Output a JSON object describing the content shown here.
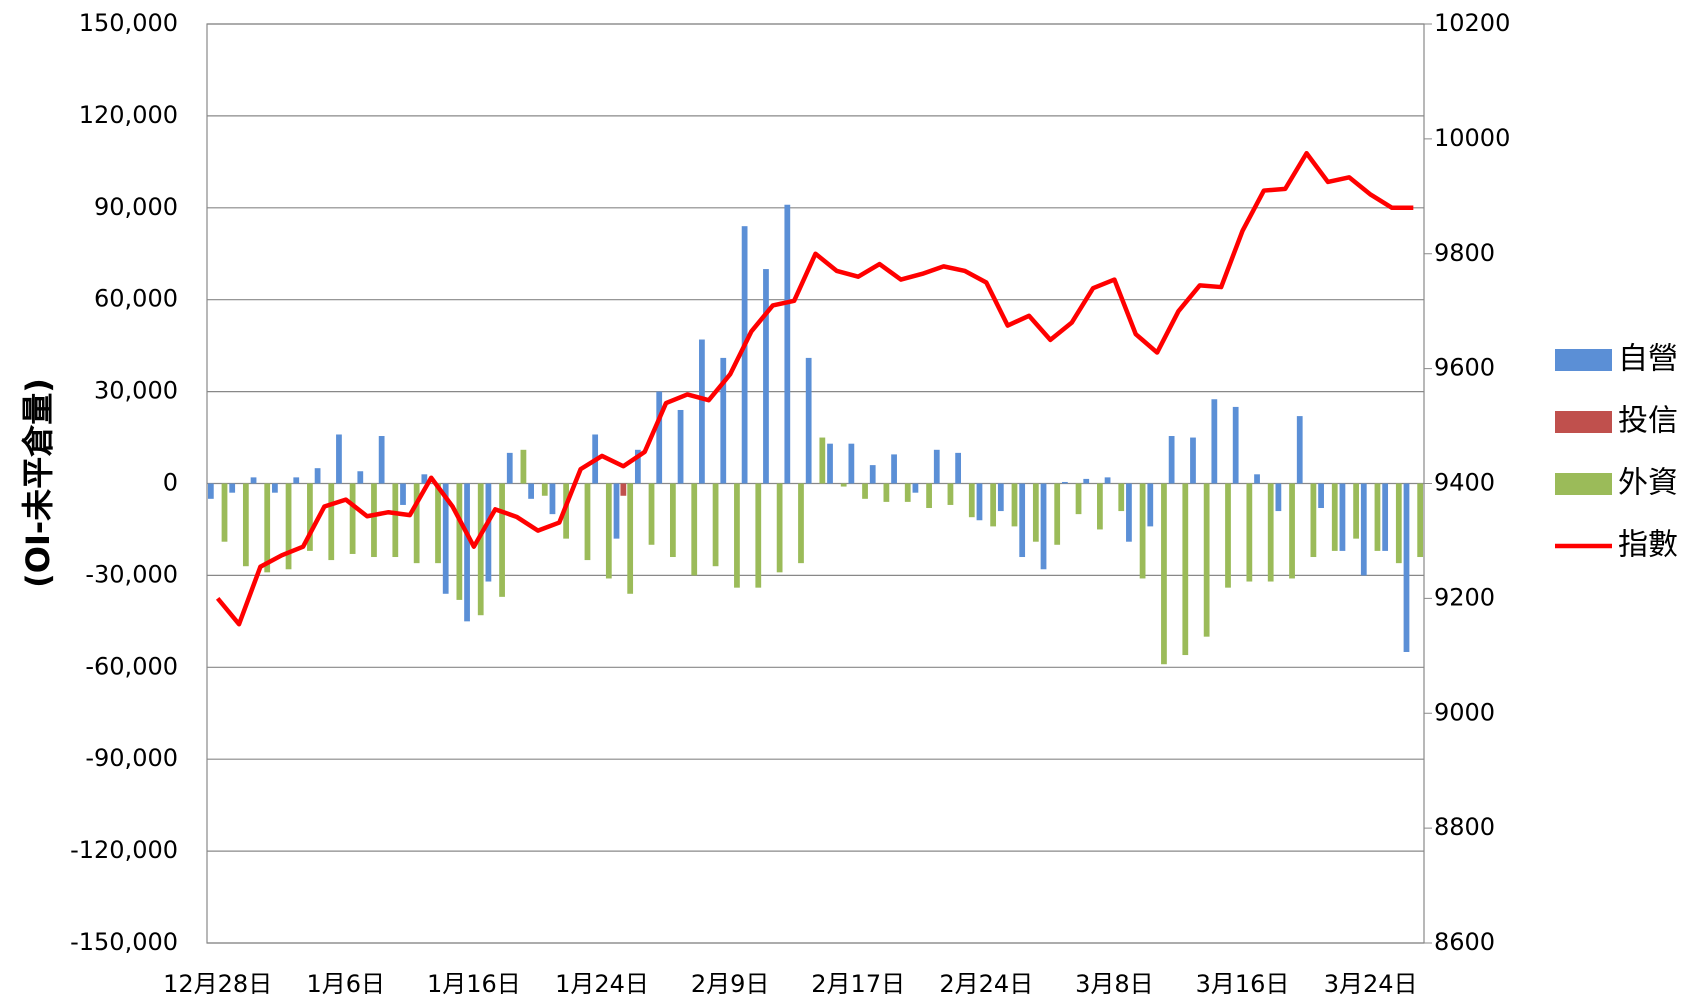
{
  "chart_data": {
    "type": "bar-line",
    "y_axis_label": "(OI-未平倉量)",
    "categories": [
      "12月28日",
      null,
      null,
      null,
      null,
      null,
      "1月6日",
      null,
      null,
      null,
      null,
      null,
      "1月16日",
      null,
      null,
      null,
      null,
      null,
      "1月24日",
      null,
      null,
      null,
      null,
      null,
      "2月9日",
      null,
      null,
      null,
      null,
      null,
      "2月17日",
      null,
      null,
      null,
      null,
      null,
      "2月24日",
      null,
      null,
      null,
      null,
      null,
      "3月8日",
      null,
      null,
      null,
      null,
      null,
      "3月16日",
      null,
      null,
      null,
      null,
      null,
      "3月24日",
      null,
      null
    ],
    "series": [
      {
        "name": "自營",
        "type": "bar",
        "color": "#5b8fd6",
        "values": [
          -5000,
          -3000,
          2000,
          -3000,
          2000,
          5000,
          16000,
          4000,
          15500,
          -7000,
          3000,
          -36000,
          -45000,
          -32000,
          10000,
          -5000,
          -10000,
          0,
          16000,
          -18000,
          11000,
          30000,
          24000,
          47000,
          41000,
          84000,
          70000,
          91000,
          41000,
          13000,
          13000,
          6000,
          9500,
          -3000,
          11000,
          10000,
          -12000,
          -9000,
          -24000,
          -28000,
          500,
          1500,
          2000,
          -19000,
          -14000,
          15500,
          15000,
          27500,
          25000,
          3000,
          -9000,
          22000,
          -8000,
          -22000,
          -30000,
          -22000,
          -55000
        ]
      },
      {
        "name": "投信",
        "type": "bar",
        "color": "#c0504d",
        "values": [
          0,
          0,
          0,
          0,
          0,
          0,
          0,
          0,
          0,
          0,
          0,
          0,
          0,
          0,
          0,
          0,
          0,
          0,
          0,
          -4000,
          0,
          0,
          0,
          0,
          0,
          0,
          0,
          0,
          0,
          0,
          0,
          0,
          0,
          0,
          0,
          0,
          0,
          0,
          0,
          0,
          0,
          0,
          0,
          0,
          0,
          0,
          0,
          0,
          0,
          0,
          0,
          0,
          0,
          0,
          0,
          0,
          0
        ]
      },
      {
        "name": "外資",
        "type": "bar",
        "color": "#9bbb59",
        "values": [
          -19000,
          -27000,
          -29000,
          -28000,
          -22000,
          -25000,
          -23000,
          -24000,
          -24000,
          -26000,
          -26000,
          -38000,
          -43000,
          -37000,
          11000,
          -4000,
          -18000,
          -25000,
          -31000,
          -36000,
          -20000,
          -24000,
          -30000,
          -27000,
          -34000,
          -34000,
          -29000,
          -26000,
          15000,
          -1000,
          -5000,
          -6000,
          -6000,
          -8000,
          -7000,
          -11000,
          -14000,
          -14000,
          -19000,
          -20000,
          -10000,
          -15000,
          -9000,
          -31000,
          -59000,
          -56000,
          -50000,
          -34000,
          -32000,
          -32000,
          -31000,
          -24000,
          -22000,
          -18000,
          -22000,
          -26000,
          -24000
        ]
      },
      {
        "name": "指數",
        "type": "line",
        "axis": "y2",
        "color": "#ff0000",
        "values": [
          9200,
          9155,
          9255,
          9275,
          9290,
          9360,
          9372,
          9343,
          9350,
          9345,
          9410,
          9360,
          9290,
          9355,
          9342,
          9318,
          9332,
          9425,
          9448,
          9430,
          9455,
          9540,
          9555,
          9545,
          9590,
          9665,
          9710,
          9718,
          9800,
          9770,
          9760,
          9782,
          9755,
          9765,
          9778,
          9770,
          9750,
          9675,
          9692,
          9650,
          9680,
          9740,
          9755,
          9660,
          9628,
          9700,
          9745,
          9742,
          9840,
          9910,
          9913,
          9975,
          9925,
          9933,
          9903,
          9880,
          9880
        ]
      }
    ],
    "ylim": [
      -150000,
      150000
    ],
    "yticks": [
      {
        "value": -150000,
        "label": "-150,000"
      },
      {
        "value": -120000,
        "label": "-120,000"
      },
      {
        "value": -90000,
        "label": "-90,000"
      },
      {
        "value": -60000,
        "label": "-60,000"
      },
      {
        "value": -30000,
        "label": "-30,000"
      },
      0,
      {
        "value": 30000,
        "label": "30,000"
      },
      {
        "value": 60000,
        "label": "60,000"
      },
      {
        "value": 90000,
        "label": "90,000"
      },
      {
        "value": 120000,
        "label": "120,000"
      },
      {
        "value": 150000,
        "label": "150,000"
      }
    ],
    "y2lim": [
      8600,
      10200
    ],
    "y2ticks": [
      8600,
      8800,
      9000,
      9200,
      9400,
      9600,
      9800,
      10000,
      10200
    ],
    "grid": true,
    "legend": "right"
  }
}
